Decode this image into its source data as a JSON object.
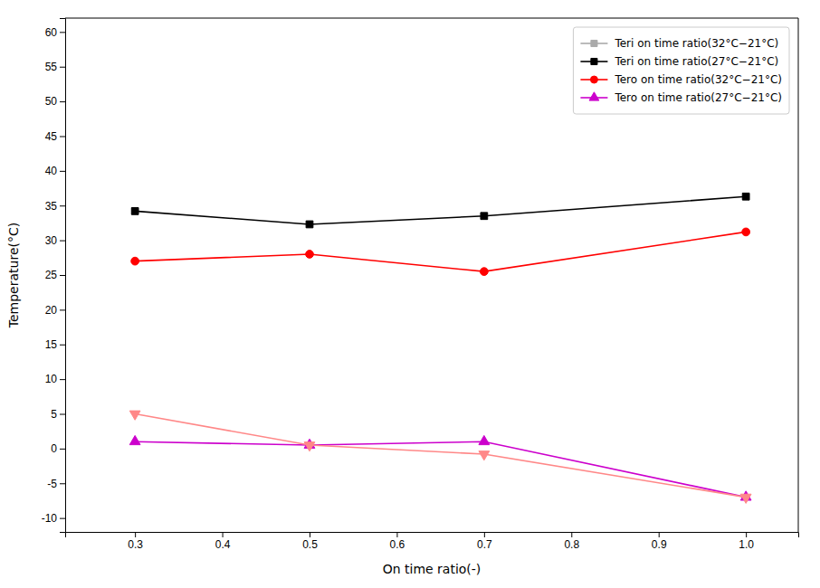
{
  "chart_data": {
    "type": "line",
    "x_label": "On time ratio(-)",
    "y_label": "Temperature(°C)",
    "x": [
      0.3,
      0.5,
      0.7,
      1.0
    ],
    "series": [
      {
        "name": "Teri on time ratio(32°C−21°C)",
        "color": "#aaaaaa",
        "marker": "square",
        "line_style": "solid",
        "values": [
          null,
          null,
          null,
          null
        ]
      },
      {
        "name": "Teri on time ratio(27°C−21°C)",
        "color": "#000000",
        "marker": "square",
        "line_style": "solid",
        "values": [
          34.2,
          32.3,
          33.5,
          36.3
        ]
      },
      {
        "name": "Tero on time ratio(32°C−21°C)",
        "color": "#ff0000",
        "marker": "circle",
        "line_style": "solid",
        "values": [
          27.0,
          28.0,
          25.5,
          31.2
        ]
      },
      {
        "name": "Tero on time ratio(27°C−21°C)",
        "color": "#cc00cc",
        "marker": "triangle-up",
        "line_style": "solid",
        "values": [
          1.0,
          0.5,
          1.0,
          -7.0
        ]
      },
      {
        "color": "#ff8888",
        "marker": "triangle-down",
        "line_style": "solid",
        "values": [
          5.0,
          0.5,
          -0.8,
          -7.0
        ]
      }
    ],
    "xlim": [
      0.22,
      1.06
    ],
    "ylim": [
      -12,
      62
    ],
    "xticks": [
      0.3,
      0.4,
      0.5,
      0.6,
      0.7,
      0.8,
      0.9,
      {
        "value": 1.0,
        "label": "1.0"
      }
    ],
    "yticks": [
      -10,
      -5,
      0,
      5,
      10,
      15,
      20,
      25,
      30,
      35,
      40,
      45,
      50,
      55,
      60
    ],
    "legend": "upper right",
    "grid": false
  }
}
